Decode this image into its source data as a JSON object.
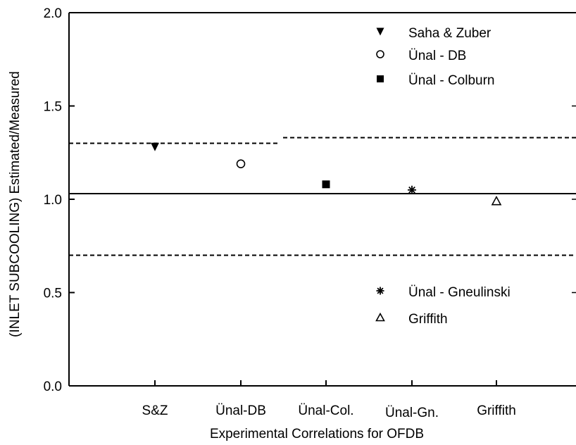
{
  "chart_data": {
    "type": "scatter",
    "title": "",
    "xlabel": "Experimental Correlations for OFDB",
    "ylabel": "(INLET SUBCOOLING) Estimated/Measured",
    "ylim": [
      0.0,
      2.0
    ],
    "yticks": [
      "0.0",
      "0.5",
      "1.0",
      "1.5",
      "2.0"
    ],
    "categories": [
      "S&Z",
      "Ünal-DB",
      "Ünal-Col.",
      "Ünal-Gn.",
      "Griffith"
    ],
    "series": [
      {
        "name": "Saha & Zuber",
        "marker": "filled-triangle-down",
        "category": "S&Z",
        "value": 1.28
      },
      {
        "name": "Ünal - DB",
        "marker": "open-circle",
        "category": "Ünal-DB",
        "value": 1.19
      },
      {
        "name": "Ünal - Colburn",
        "marker": "filled-square",
        "category": "Ünal-Col.",
        "value": 1.08
      },
      {
        "name": "Ünal - Gneulinski",
        "marker": "asterisk",
        "category": "Ünal-Gn.",
        "value": 1.05
      },
      {
        "name": "Griffith",
        "marker": "open-triangle-up",
        "category": "Griffith",
        "value": 0.99
      }
    ],
    "reference_lines": {
      "solid": 1.03,
      "dashed_lower": 0.7,
      "dashed_upper_left": 1.3,
      "dashed_upper_right": 1.33
    },
    "legend_groups": [
      {
        "placement": "top-right",
        "entries": [
          "Saha & Zuber",
          "Ünal - DB",
          "Ünal - Colburn"
        ]
      },
      {
        "placement": "lower-right",
        "entries": [
          "Ünal - Gneulinski",
          "Griffith"
        ]
      }
    ],
    "grid": false,
    "colors": {
      "ink": "#000000",
      "background": "#ffffff"
    }
  }
}
